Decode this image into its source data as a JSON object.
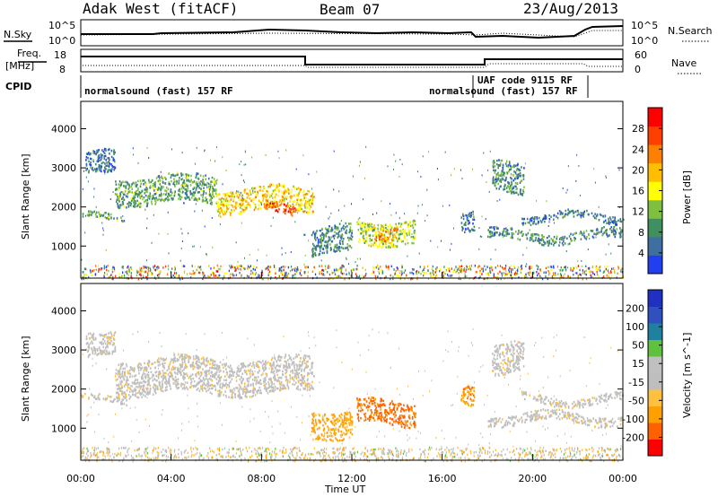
{
  "header": {
    "radar": "Adak West (fitACF)",
    "beam": "Beam 07",
    "date": "23/Aug/2013"
  },
  "top_panels": {
    "nsky_label": "N.Sky",
    "nsearch_label": "N.Search",
    "nsky_ticks": [
      "10^5",
      "10^0"
    ],
    "nsearch_ticks": [
      "10^5",
      "10^0"
    ],
    "freq_label_1": "Freq.",
    "freq_label_2": "[MHz]",
    "freq_ticks": [
      "18",
      "8"
    ],
    "nave_label": "Nave",
    "nave_ticks": [
      "60",
      "0"
    ],
    "cpid_label": "CPID",
    "cpid_segments": [
      "normalsound (fast) 157 RF",
      "normalsound (fast) 157 RF",
      "UAF code 9115 RF"
    ]
  },
  "colors": {
    "power_scale": [
      "#1f3ff0",
      "#3f6fa0",
      "#3f8f5f",
      "#7fbf3f",
      "#ffff00",
      "#ffbf00",
      "#ff7f00",
      "#ff3f00",
      "#ff0000"
    ],
    "velocity_scale": [
      "#ff0000",
      "#ff6000",
      "#ffa000",
      "#ffc040",
      "#bebebe",
      "#c0c0c0",
      "#60c040",
      "#2080a0",
      "#3050c0",
      "#2030c0"
    ]
  },
  "chart_data": [
    {
      "type": "heatmap",
      "name": "power",
      "xlabel": "Time UT",
      "ylabel": "Slant Range [km]",
      "x_ticks": [
        "00:00",
        "04:00",
        "08:00",
        "12:00",
        "16:00",
        "20:00",
        "00:00"
      ],
      "x_range_hours": [
        0,
        24
      ],
      "ylim": [
        180,
        4700
      ],
      "y_ticks": [
        1000,
        2000,
        3000,
        4000
      ],
      "colorbar_label": "Power [dB]",
      "colorbar_ticks": [
        4,
        8,
        12,
        16,
        20,
        24,
        28
      ],
      "colorbar_range": [
        0,
        32
      ],
      "regions": [
        {
          "t": [
            0.2,
            1.5
          ],
          "r": [
            2800,
            3400
          ],
          "value": 6
        },
        {
          "t": [
            0.0,
            2.0
          ],
          "r": [
            1650,
            1800
          ],
          "value": 10
        },
        {
          "t": [
            1.5,
            6.0
          ],
          "r": [
            2100,
            2800
          ],
          "value": 10
        },
        {
          "t": [
            6.0,
            10.3
          ],
          "r": [
            1900,
            2500
          ],
          "value": 18
        },
        {
          "t": [
            8.0,
            9.5
          ],
          "r": [
            1850,
            2100
          ],
          "value": 26
        },
        {
          "t": [
            10.2,
            12.0
          ],
          "r": [
            800,
            1500
          ],
          "value": 8
        },
        {
          "t": [
            12.2,
            14.8
          ],
          "r": [
            1100,
            1700
          ],
          "value": 14
        },
        {
          "t": [
            13.0,
            14.0
          ],
          "r": [
            1200,
            1500
          ],
          "value": 22
        },
        {
          "t": [
            16.8,
            17.4
          ],
          "r": [
            1500,
            2000
          ],
          "value": 6
        },
        {
          "t": [
            18.0,
            24.0
          ],
          "r": [
            1150,
            1400
          ],
          "value": 8
        },
        {
          "t": [
            18.2,
            19.6
          ],
          "r": [
            2400,
            3200
          ],
          "value": 8
        },
        {
          "t": [
            19.5,
            24.0
          ],
          "r": [
            1650,
            1850
          ],
          "value": 6
        }
      ]
    },
    {
      "type": "heatmap",
      "name": "velocity",
      "xlabel": "Time UT",
      "ylabel": "Slant Range [km]",
      "x_ticks": [
        "00:00",
        "04:00",
        "08:00",
        "12:00",
        "16:00",
        "20:00",
        "00:00"
      ],
      "x_range_hours": [
        0,
        24
      ],
      "ylim": [
        180,
        4700
      ],
      "y_ticks": [
        1000,
        2000,
        3000,
        4000
      ],
      "colorbar_label": "Velocity [m s^-1]",
      "colorbar_ticks": [
        200,
        100,
        50,
        15,
        -15,
        -50,
        -100,
        -200
      ],
      "regions": [
        {
          "t": [
            0.2,
            1.5
          ],
          "r": [
            2800,
            3400
          ],
          "value": 0
        },
        {
          "t": [
            0.0,
            2.0
          ],
          "r": [
            1650,
            1800
          ],
          "value": 0
        },
        {
          "t": [
            1.5,
            10.3
          ],
          "r": [
            1900,
            2800
          ],
          "value": 0
        },
        {
          "t": [
            10.2,
            12.0
          ],
          "r": [
            800,
            1500
          ],
          "value": -60
        },
        {
          "t": [
            12.2,
            14.8
          ],
          "r": [
            1100,
            1700
          ],
          "value": -110
        },
        {
          "t": [
            16.8,
            17.4
          ],
          "r": [
            1500,
            2000
          ],
          "value": -90
        },
        {
          "t": [
            18.0,
            24.0
          ],
          "r": [
            1150,
            1400
          ],
          "value": 0
        },
        {
          "t": [
            18.2,
            19.6
          ],
          "r": [
            2400,
            3200
          ],
          "value": 0
        },
        {
          "t": [
            19.5,
            24.0
          ],
          "r": [
            1650,
            1850
          ],
          "value": 0
        }
      ]
    }
  ]
}
